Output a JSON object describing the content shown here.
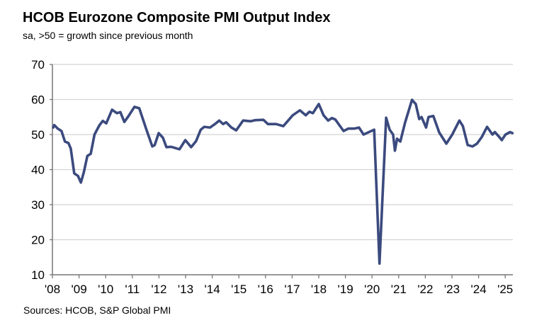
{
  "chart_data": {
    "type": "line",
    "title": "HCOB Eurozone Composite PMI Output Index",
    "subtitle": "sa, >50 = growth since previous month",
    "source": "Sources: HCOB, S&P Global PMI",
    "xlabel": "",
    "ylabel": "",
    "ylim": [
      10,
      70
    ],
    "xlim": [
      2008,
      2025.3
    ],
    "yticks": [
      "10",
      "20",
      "30",
      "40",
      "50",
      "60",
      "70"
    ],
    "ytick_values": [
      10,
      20,
      30,
      40,
      50,
      60,
      70
    ],
    "xticks": [
      "'08",
      "'09",
      "'10",
      "'11",
      "'12",
      "'13",
      "'14",
      "'15",
      "'16",
      "'17",
      "'18",
      "'19",
      "'20",
      "'21",
      "'22",
      "'23",
      "'24",
      "'25"
    ],
    "grid": true,
    "line_color": "#3b4a7e",
    "series": [
      {
        "name": "Composite PMI Output Index",
        "x": [
          2008.03,
          2008.07,
          2008.2,
          2008.34,
          2008.47,
          2008.6,
          2008.69,
          2008.82,
          2008.96,
          2009.07,
          2009.18,
          2009.31,
          2009.44,
          2009.58,
          2009.76,
          2009.89,
          2010.02,
          2010.24,
          2010.42,
          2010.55,
          2010.7,
          2010.86,
          2011.08,
          2011.26,
          2011.53,
          2011.75,
          2011.84,
          2011.99,
          2012.15,
          2012.28,
          2012.46,
          2012.77,
          2012.99,
          2013.21,
          2013.39,
          2013.57,
          2013.7,
          2013.92,
          2014.1,
          2014.26,
          2014.41,
          2014.52,
          2014.72,
          2014.9,
          2015.16,
          2015.43,
          2015.61,
          2015.92,
          2016.09,
          2016.4,
          2016.67,
          2017.02,
          2017.29,
          2017.51,
          2017.65,
          2017.78,
          2018.0,
          2018.18,
          2018.35,
          2018.49,
          2018.62,
          2018.93,
          2019.11,
          2019.33,
          2019.51,
          2019.68,
          2020.08,
          2020.28,
          2020.53,
          2020.66,
          2020.79,
          2020.86,
          2020.94,
          2021.06,
          2021.24,
          2021.5,
          2021.64,
          2021.77,
          2021.86,
          2022.03,
          2022.12,
          2022.3,
          2022.52,
          2022.79,
          2023.01,
          2023.28,
          2023.41,
          2023.59,
          2023.77,
          2023.94,
          2024.12,
          2024.32,
          2024.52,
          2024.61,
          2024.78,
          2024.87,
          2025.01,
          2025.18,
          2025.27
        ],
        "values": [
          52.0,
          52.7,
          51.7,
          51.0,
          48.0,
          47.6,
          46.0,
          38.9,
          38.2,
          36.3,
          39.3,
          43.9,
          44.5,
          50.0,
          52.6,
          53.9,
          53.2,
          57.1,
          56.1,
          56.4,
          53.6,
          55.3,
          57.9,
          57.5,
          51.4,
          46.6,
          47.0,
          50.4,
          49.1,
          46.4,
          46.5,
          45.8,
          48.4,
          46.4,
          48.1,
          51.4,
          52.2,
          52.0,
          53.0,
          54.0,
          53.0,
          53.5,
          52.0,
          51.2,
          54.0,
          53.8,
          54.1,
          54.2,
          53.0,
          53.0,
          52.4,
          55.5,
          56.9,
          55.5,
          56.5,
          56.1,
          58.7,
          55.5,
          54.0,
          54.7,
          54.3,
          51.0,
          51.7,
          51.7,
          52.0,
          50.0,
          51.4,
          13.2,
          54.8,
          51.4,
          50.0,
          45.4,
          48.8,
          48.0,
          53.4,
          59.9,
          58.7,
          54.4,
          55.0,
          52.0,
          55.0,
          55.3,
          50.6,
          47.4,
          50.0,
          54.0,
          52.4,
          47.0,
          46.6,
          47.4,
          49.3,
          52.2,
          50.0,
          50.7,
          49.3,
          48.4,
          50.0,
          50.7,
          50.4
        ]
      }
    ]
  }
}
